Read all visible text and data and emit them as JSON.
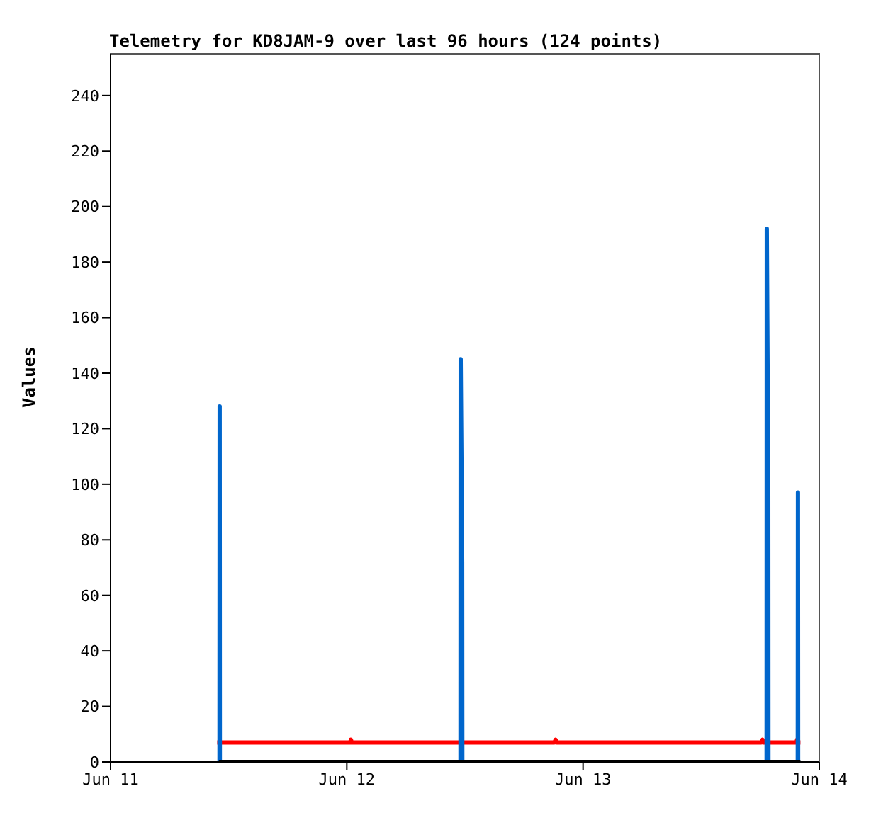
{
  "chart_data": {
    "type": "line",
    "title": "Telemetry for KD8JAM-9 over last 96 hours (124 points)",
    "ylabel": "Values",
    "xlim": [
      "--06-11",
      "--06-14"
    ],
    "xticks": [
      {
        "value": "--06-11",
        "label": "Jun 11"
      },
      {
        "value": "--06-12",
        "label": "Jun 12"
      },
      {
        "value": "--06-13",
        "label": "Jun 13"
      },
      {
        "value": "--06-14",
        "label": "Jun 14"
      }
    ],
    "ylim": [
      0,
      255
    ],
    "yticks": [
      0,
      20,
      40,
      60,
      80,
      100,
      120,
      140,
      160,
      180,
      200,
      220,
      240
    ],
    "marker": "none",
    "line_style": "solid",
    "series": [
      {
        "color": "#ff0000",
        "x": [
          "--06-11T10:50",
          "--06-12T00:20",
          "--06-12T00:25",
          "--06-12T00:30",
          "--06-12T21:05",
          "--06-12T21:13",
          "--06-12T21:20",
          "--06-13T18:05",
          "--06-13T18:14",
          "--06-13T18:20",
          "--06-13T21:40",
          "--06-13T21:45",
          "--06-13T21:50",
          "--06-13T22:05"
        ],
        "values": [
          7,
          7,
          8,
          7,
          7,
          8,
          7,
          7,
          8,
          7,
          7,
          8,
          7,
          7
        ]
      },
      {
        "color": "#0066cc",
        "x": [
          "--06-11T11:04",
          "--06-11T11:05",
          "--06-11T11:06",
          "--06-11T12:00",
          "--06-12T11:33",
          "--06-12T11:34",
          "--06-12T11:43",
          "--06-12T11:44",
          "--06-12T12:30",
          "--06-13T18:39",
          "--06-13T18:40",
          "--06-13T18:49",
          "--06-13T18:50",
          "--06-13T19:30",
          "--06-13T21:49",
          "--06-13T21:50",
          "--06-13T21:51"
        ],
        "values": [
          0,
          128,
          0,
          null,
          0,
          145,
          72,
          0,
          null,
          0,
          192,
          96,
          0,
          null,
          0,
          97,
          0
        ]
      },
      {
        "color": "#000000",
        "x": [
          "--06-11T11:00",
          "--06-13T22:05"
        ],
        "values": [
          0,
          0
        ]
      }
    ]
  }
}
